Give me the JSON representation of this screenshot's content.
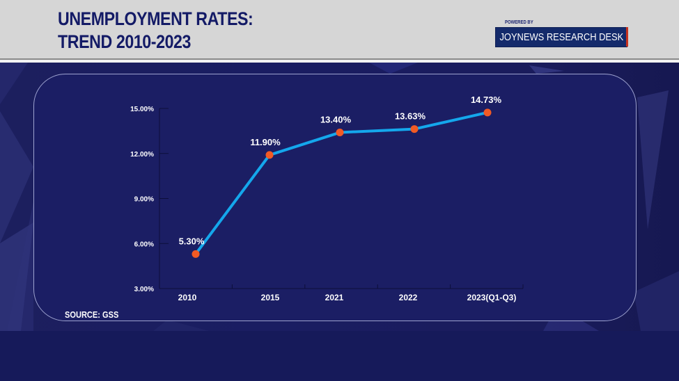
{
  "header": {
    "title_line1": "UNEMPLOYMENT RATES:",
    "title_line2": "TREND 2010-2023",
    "powered_by": "POWERED BY",
    "brand": "JOYNEWS RESEARCH DESK"
  },
  "footer": {
    "source": "SOURCE: GSS"
  },
  "colors": {
    "header_bg": "#d6d6d6",
    "title_text": "#131a66",
    "brand_bg": "#142a6b",
    "brand_accent": "#c8321e",
    "panel_bg": "#1b1e64",
    "line": "#14a7ec",
    "marker": "#f15a24",
    "axis": "#0c0e3a",
    "label_text": "#ffffff"
  },
  "chart_data": {
    "type": "line",
    "title": "Unemployment Rates: Trend 2010-2023",
    "categories": [
      "2010",
      "2015",
      "2021",
      "2022",
      "2023(Q1-Q3)"
    ],
    "series": [
      {
        "name": "Unemployment rate",
        "values": [
          5.3,
          11.9,
          13.4,
          13.63,
          14.73
        ],
        "labels": [
          "5.30%",
          "11.90%",
          "13.40%",
          "13.63%",
          "14.73%"
        ]
      }
    ],
    "yticks": [
      "3.00%",
      "6.00%",
      "9.00%",
      "12.00%",
      "15.00%"
    ],
    "ytick_values": [
      3,
      6,
      9,
      12,
      15
    ],
    "ylim": [
      3,
      15
    ],
    "xlabel": "",
    "ylabel": "",
    "grid": false,
    "legend": "none",
    "source": "SOURCE: GSS"
  }
}
